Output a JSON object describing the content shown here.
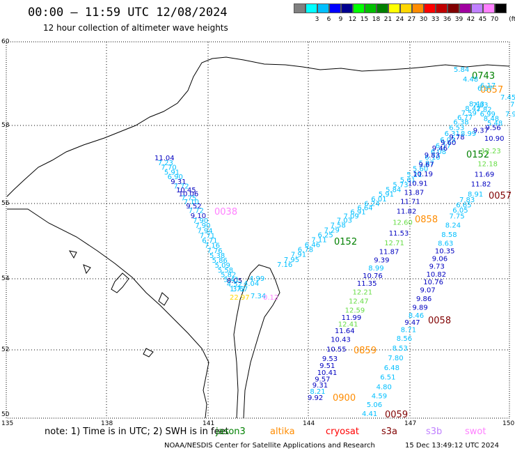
{
  "title": "00:00 – 11:59 UTC 12/08/2024",
  "subtitle": "12 hour collection of altimeter wave heights",
  "legend": {
    "unit": "(ft)",
    "items": [
      {
        "color": "#808080",
        "label": ""
      },
      {
        "color": "#00ffff",
        "label": "3"
      },
      {
        "color": "#00bfff",
        "label": "6"
      },
      {
        "color": "#0000ff",
        "label": "9"
      },
      {
        "color": "#000090",
        "label": "12"
      },
      {
        "color": "#00ff00",
        "label": "15"
      },
      {
        "color": "#00c000",
        "label": "18"
      },
      {
        "color": "#008000",
        "label": "21"
      },
      {
        "color": "#ffff00",
        "label": "24"
      },
      {
        "color": "#ffd700",
        "label": "27"
      },
      {
        "color": "#ff8c00",
        "label": "30"
      },
      {
        "color": "#ff0000",
        "label": "33"
      },
      {
        "color": "#c00000",
        "label": "36"
      },
      {
        "color": "#800000",
        "label": "39"
      },
      {
        "color": "#a000a0",
        "label": "42"
      },
      {
        "color": "#c080ff",
        "label": "45"
      },
      {
        "color": "#ff80ff",
        "label": "70"
      },
      {
        "color": "#000000",
        "label": ""
      }
    ]
  },
  "axes": {
    "lat_labels": [
      "60",
      "58",
      "56",
      "54",
      "52",
      "50"
    ],
    "lon_labels": [
      "135",
      "138",
      "141",
      "144",
      "147",
      "150"
    ]
  },
  "track_a": {
    "values": [
      "11.04",
      "7.23",
      "7.70",
      "5.91",
      "6.90",
      "9.31",
      "7.72",
      "10.45",
      "10.06",
      "7.75",
      "7.10",
      "9.52",
      "7.72",
      "9.10",
      "7.90",
      "7.90",
      "7.94",
      "7.71",
      "6.71",
      "7.16",
      "7.76",
      "5.38",
      "5.86",
      "5.09",
      "5.58",
      "5.82",
      "5.41",
      "4.52",
      "1.72"
    ],
    "time": "0038"
  },
  "track_b": {
    "values": [
      "7.16",
      "7.95",
      "7.91",
      "6.78",
      "6.46",
      "7.11",
      "6.25",
      "7.29",
      "7.58",
      "7.03",
      "7.09",
      "6.91",
      "6.64",
      "6.24",
      "6.01",
      "5.91",
      "5.84",
      "5.73",
      "5.61",
      "5.21",
      "5.60",
      "5.97",
      "6.10",
      "6.08",
      "6.17",
      "6.03",
      "6.31",
      "6.53",
      "6.38",
      "6.77",
      "7.59",
      "8.42",
      "8.43",
      "7.83",
      "7.82",
      "6.99",
      "8.48",
      "5.48"
    ],
    "time_a": "0152",
    "time_b": "0743"
  },
  "track_c": {
    "values": [
      "9.92",
      "8.21",
      "9.31",
      "9.57",
      "10.41",
      "9.51",
      "9.53",
      "10.55",
      "10.43",
      "11.64",
      "12.41",
      "11.99",
      "12.59",
      "12.47",
      "12.21",
      "11.35",
      "10.76",
      "8.99",
      "9.39",
      "11.87",
      "12.71",
      "11.53",
      "12.60",
      "11.82",
      "11.71",
      "11.87",
      "10.91",
      "10.19",
      "9.67",
      "9.83",
      "9.46",
      "9.60",
      "9.78",
      "8.99",
      "9.37",
      "9.56",
      "10.90",
      "12.23",
      "12.18",
      "11.69",
      "11.82",
      "8.91"
    ],
    "time_a": "0900",
    "time_b": "0859",
    "time_c": "0858",
    "time_d": "0152"
  },
  "track_d": {
    "values": [
      "4.41",
      "5.06",
      "4.59",
      "4.80",
      "6.51",
      "6.48",
      "7.80",
      "8.53",
      "8.56",
      "8.71",
      "9.47",
      "8.46",
      "9.89",
      "9.86",
      "9.07",
      "10.76",
      "10.82",
      "9.73",
      "9.06",
      "10.35",
      "8.63",
      "8.58",
      "8.24",
      "7.75",
      "6.05",
      "6.65",
      "7.83"
    ],
    "time_a": "0059",
    "time_b": "0058",
    "time_c": "0057"
  },
  "right_edge": {
    "values": [
      "7.45",
      "7.",
      "7.9"
    ]
  },
  "okhotsk_labels": {
    "time": "0657",
    "v1": "6.37",
    "v2": "5.84",
    "v3": "4.48",
    "v4": "6.17"
  },
  "island_labels": {
    "v1": "3.67",
    "v2": "4.04",
    "v3": "4.99",
    "v4": "22.97",
    "v5": "7.34",
    "v6": "8.05",
    "v7": "0.12"
  },
  "note": "note: 1) Time is in UTC; 2) SWH is in feet",
  "satellites": [
    {
      "name": "jason3",
      "color": "#008000"
    },
    {
      "name": "altika",
      "color": "#ff8c00"
    },
    {
      "name": "cryosat",
      "color": "#ff0000"
    },
    {
      "name": "s3a",
      "color": "#800000"
    },
    {
      "name": "s3b",
      "color": "#c080ff"
    },
    {
      "name": "swot",
      "color": "#ff80ff"
    }
  ],
  "credit": "NOAA/NESDIS Center for Satellite Applications and Research",
  "stamp": "15 Dec 13:49:12 UTC 2024"
}
